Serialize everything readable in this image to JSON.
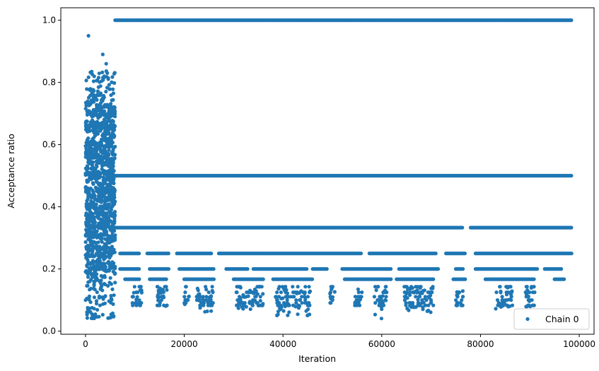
{
  "chart_data": {
    "type": "scatter",
    "xlabel": "Iteration",
    "ylabel": "Acceptance ratio",
    "xlim": [
      -5000,
      103000
    ],
    "ylim": [
      -0.01,
      1.04
    ],
    "x_ticks": [
      0,
      20000,
      40000,
      60000,
      80000,
      100000
    ],
    "y_ticks": [
      0.0,
      0.2,
      0.4,
      0.6,
      0.8,
      1.0
    ],
    "x_tick_labels": [
      "0",
      "20000",
      "40000",
      "60000",
      "80000",
      "100000"
    ],
    "y_tick_labels": [
      "0.0",
      "0.2",
      "0.4",
      "0.6",
      "0.8",
      "1.0"
    ],
    "grid": false,
    "legend_position": "lower-right",
    "series": [
      {
        "name": "Chain 0",
        "color": "#1f77b4",
        "marker": "circle",
        "burn_in": {
          "x_range": [
            0,
            6000
          ],
          "y_range": [
            0.04,
            0.89
          ]
        },
        "level_bands": [
          {
            "y": 1.0,
            "x_range": [
              6000,
              98500
            ]
          },
          {
            "y": 0.5,
            "x_range": [
              6000,
              98500
            ]
          },
          {
            "y": 0.333,
            "x_ranges": [
              [
                6000,
                76500
              ],
              [
                78000,
                98500
              ]
            ]
          },
          {
            "y": 0.25,
            "x_ranges": [
              [
                7000,
                11000
              ],
              [
                12500,
                17000
              ],
              [
                18500,
                25500
              ],
              [
                27000,
                56000
              ],
              [
                57500,
                71000
              ],
              [
                73000,
                77000
              ],
              [
                79000,
                98500
              ]
            ]
          },
          {
            "y": 0.2,
            "x_ranges": [
              [
                7000,
                11000
              ],
              [
                13000,
                17000
              ],
              [
                19000,
                26000
              ],
              [
                28500,
                33000
              ],
              [
                34000,
                45000
              ],
              [
                46000,
                49000
              ],
              [
                52000,
                62000
              ],
              [
                63500,
                71500
              ],
              [
                75000,
                76500
              ],
              [
                79000,
                91500
              ],
              [
                93000,
                96500
              ]
            ]
          },
          {
            "y": 0.167,
            "x_ranges": [
              [
                8000,
                11000
              ],
              [
                13000,
                16500
              ],
              [
                20000,
                26000
              ],
              [
                30000,
                36000
              ],
              [
                38000,
                46000
              ],
              [
                52500,
                62000
              ],
              [
                63000,
                70500
              ],
              [
                74500,
                77000
              ],
              [
                81000,
                91000
              ],
              [
                95000,
                97000
              ]
            ]
          }
        ],
        "low_clusters": [
          {
            "x_range": [
              9500,
              11500
            ],
            "y_min": 0.08
          },
          {
            "x_range": [
              14500,
              16500
            ],
            "y_min": 0.08
          },
          {
            "x_range": [
              20000,
              21000
            ],
            "y_min": 0.04
          },
          {
            "x_range": [
              22500,
              26000
            ],
            "y_min": 0.06
          },
          {
            "x_range": [
              30500,
              36000
            ],
            "y_min": 0.07
          },
          {
            "x_range": [
              38500,
              45500
            ],
            "y_min": 0.05
          },
          {
            "x_range": [
              49500,
              50500
            ],
            "y_min": 0.1
          },
          {
            "x_range": [
              54500,
              56000
            ],
            "y_min": 0.09
          },
          {
            "x_range": [
              58500,
              61000
            ],
            "y_min": 0.04
          },
          {
            "x_range": [
              64500,
              70500
            ],
            "y_min": 0.06
          },
          {
            "x_range": [
              75000,
              76500
            ],
            "y_min": 0.09
          },
          {
            "x_range": [
              83000,
              86500
            ],
            "y_min": 0.07
          },
          {
            "x_range": [
              89000,
              91000
            ],
            "y_min": 0.07
          }
        ],
        "isolated_points": [
          {
            "x": 600,
            "y": 0.95
          },
          {
            "x": 3500,
            "y": 0.89
          },
          {
            "x": 4200,
            "y": 0.86
          }
        ]
      }
    ]
  }
}
